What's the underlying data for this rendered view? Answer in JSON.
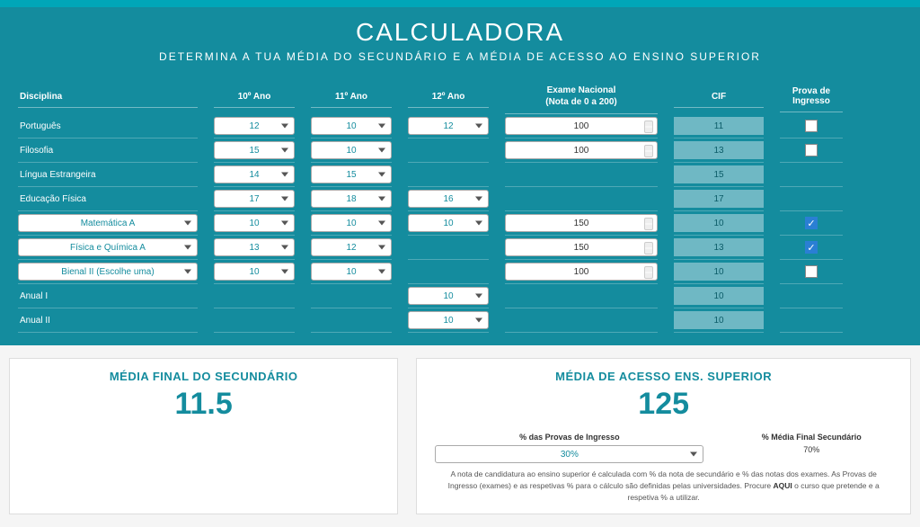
{
  "header": {
    "title": "CALCULADORA",
    "subtitle": "DETERMINA A TUA MÉDIA DO SECUNDÁRIO E A MÉDIA DE ACESSO AO ENSINO SUPERIOR"
  },
  "columns": {
    "disciplina": "Disciplina",
    "ano10": "10º Ano",
    "ano11": "11º Ano",
    "ano12": "12º Ano",
    "exame": "Exame Nacional",
    "exame_sub": "(Nota de 0 a 200)",
    "cif": "CIF",
    "prova": "Prova de Ingresso"
  },
  "rows": [
    {
      "label": "Português",
      "a10": "12",
      "a11": "10",
      "a12": "12",
      "exame": "100",
      "cif": "11",
      "check": false
    },
    {
      "label": "Filosofia",
      "a10": "15",
      "a11": "10",
      "exame": "100",
      "cif": "13",
      "check": false
    },
    {
      "label": "Língua Estrangeira",
      "a10": "14",
      "a11": "15",
      "cif": "15"
    },
    {
      "label": "Educação Física",
      "a10": "17",
      "a11": "18",
      "a12": "16",
      "cif": "17"
    },
    {
      "select": "Matemática A",
      "a10": "10",
      "a11": "10",
      "a12": "10",
      "exame": "150",
      "cif": "10",
      "check": true
    },
    {
      "select": "Física e Química A",
      "a10": "13",
      "a11": "12",
      "exame": "150",
      "cif": "13",
      "check": true
    },
    {
      "select": "Bienal II (Escolhe uma)",
      "a10": "10",
      "a11": "10",
      "exame": "100",
      "cif": "10",
      "check": false
    },
    {
      "label": "Anual I",
      "a12": "10",
      "cif": "10"
    },
    {
      "label": "Anual II",
      "a12": "10",
      "cif": "10"
    }
  ],
  "results": {
    "secundario_label": "MÉDIA FINAL DO SECUNDÁRIO",
    "secundario_value": "11.5",
    "acesso_label": "MÉDIA DE ACESSO ENS. SUPERIOR",
    "acesso_value": "125",
    "provas_label": "% das Provas de Ingresso",
    "provas_value": "30%",
    "media_pct_label": "% Média Final Secundário",
    "media_pct_value": "70%",
    "footnote_1": "A nota de candidatura ao ensino superior é calculada com % da nota de secundário e % das notas dos exames. As Provas de Ingresso (exames) e as respetivas % para o cálculo são definidas pelas universidades. Procure ",
    "footnote_bold": "AQUI",
    "footnote_2": " o curso que pretende e a respetiva % a utilizar."
  }
}
